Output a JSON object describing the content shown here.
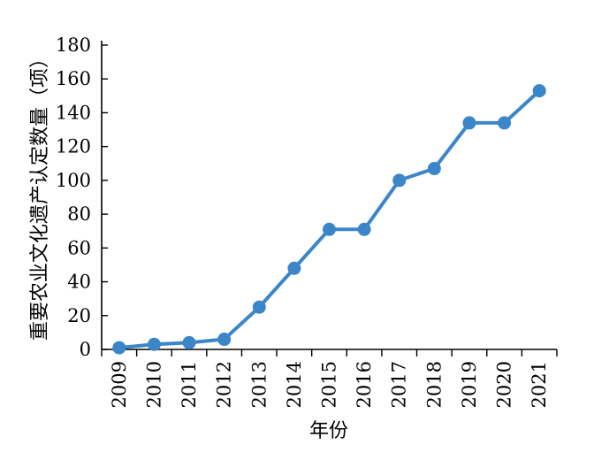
{
  "chart_data": {
    "type": "line",
    "title": "",
    "xlabel": "年份",
    "ylabel": "重要农业文化遗产认定数量（项）",
    "categories": [
      "2009",
      "2010",
      "2011",
      "2012",
      "2013",
      "2014",
      "2015",
      "2016",
      "2017",
      "2018",
      "2019",
      "2020",
      "2021"
    ],
    "series": [
      {
        "values": [
          1,
          3,
          4,
          6,
          25,
          48,
          71,
          71,
          100,
          107,
          134,
          134,
          153
        ]
      }
    ],
    "ylim": [
      0,
      180
    ],
    "yticks": [
      "0",
      "20",
      "40",
      "60",
      "80",
      "100",
      "120",
      "140",
      "160",
      "180"
    ],
    "grid": false,
    "legend": "none",
    "colors": {
      "series": "#3a86c8",
      "axis": "#000000"
    }
  }
}
